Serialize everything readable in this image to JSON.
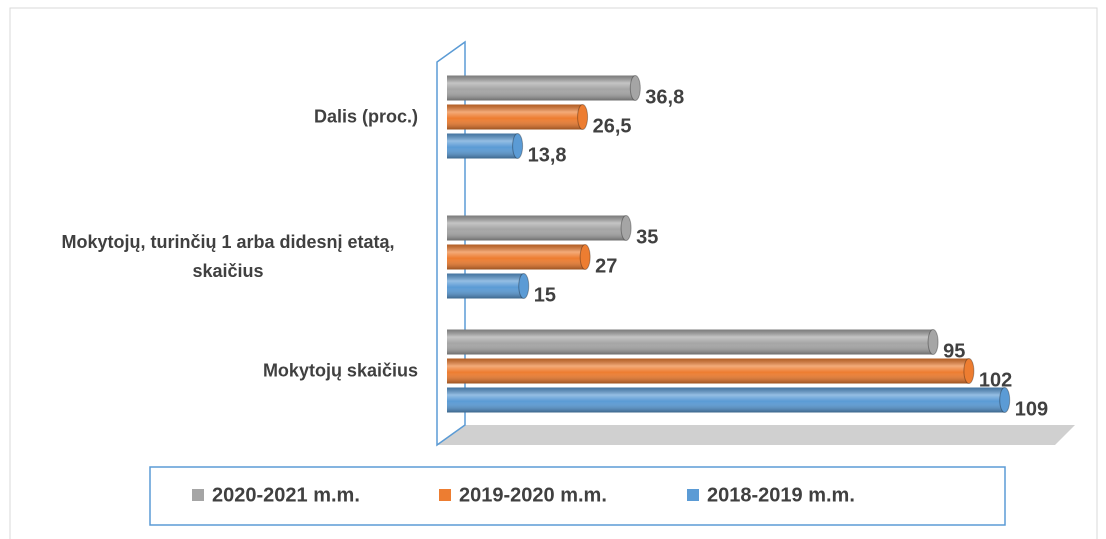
{
  "chart_data": {
    "type": "bar",
    "orientation": "horizontal",
    "categories": [
      "Mokytojų skaičius",
      "Mokytojų, turinčių 1 arba didesnį etatą, skaičius",
      "Dalis (proc.)"
    ],
    "series": [
      {
        "name": "2020-2021 m.m.",
        "color": "#a5a5a5",
        "values": [
          95,
          35,
          36.8
        ],
        "value_labels": [
          "95",
          "35",
          "36,8"
        ]
      },
      {
        "name": "2019-2020 m.m.",
        "color": "#ed7d31",
        "values": [
          102,
          27,
          26.5
        ],
        "value_labels": [
          "102",
          "27",
          "26,5"
        ]
      },
      {
        "name": "2018-2019 m.m.",
        "color": "#5b9bd5",
        "values": [
          109,
          15,
          13.8
        ],
        "value_labels": [
          "109",
          "15",
          "13,8"
        ]
      }
    ],
    "xlim": [
      0,
      120
    ],
    "legend": "bottom"
  }
}
